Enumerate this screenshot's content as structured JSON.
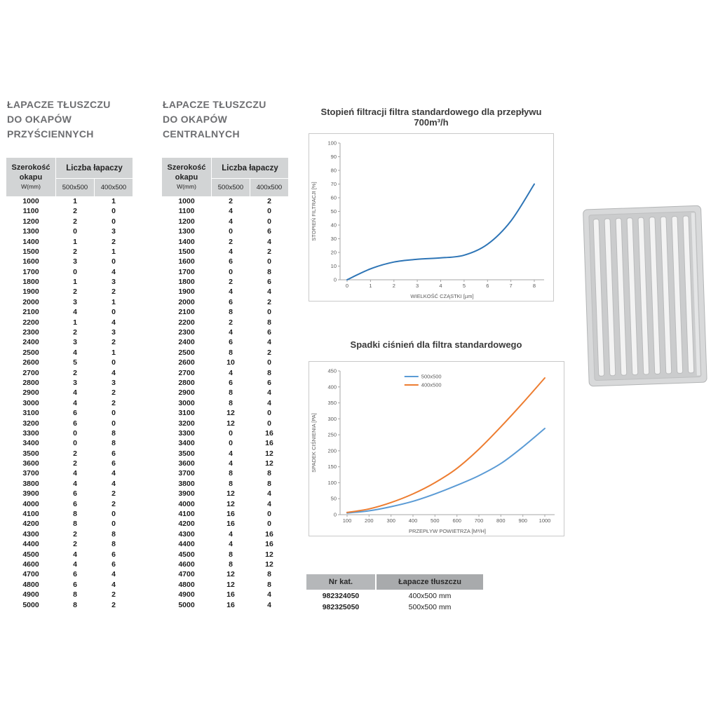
{
  "tables": [
    {
      "title_lines": [
        "ŁAPACZE TŁUSZCZU",
        "DO OKAPÓW",
        "PRZYŚCIENNYCH"
      ],
      "header": {
        "width_lines": [
          "Szerokość",
          "okapu",
          "W(mm)"
        ],
        "group": "Liczba łapaczy",
        "cols": [
          "500x500",
          "400x500"
        ]
      },
      "rows": [
        [
          1000,
          1,
          1
        ],
        [
          1100,
          2,
          0
        ],
        [
          1200,
          2,
          0
        ],
        [
          1300,
          0,
          3
        ],
        [
          1400,
          1,
          2
        ],
        [
          1500,
          2,
          1
        ],
        [
          1600,
          3,
          0
        ],
        [
          1700,
          0,
          4
        ],
        [
          1800,
          1,
          3
        ],
        [
          1900,
          2,
          2
        ],
        [
          2000,
          3,
          1
        ],
        [
          2100,
          4,
          0
        ],
        [
          2200,
          1,
          4
        ],
        [
          2300,
          2,
          3
        ],
        [
          2400,
          3,
          2
        ],
        [
          2500,
          4,
          1
        ],
        [
          2600,
          5,
          0
        ],
        [
          2700,
          2,
          4
        ],
        [
          2800,
          3,
          3
        ],
        [
          2900,
          4,
          2
        ],
        [
          3000,
          4,
          2
        ],
        [
          3100,
          6,
          0
        ],
        [
          3200,
          6,
          0
        ],
        [
          3300,
          0,
          8
        ],
        [
          3400,
          0,
          8
        ],
        [
          3500,
          2,
          6
        ],
        [
          3600,
          2,
          6
        ],
        [
          3700,
          4,
          4
        ],
        [
          3800,
          4,
          4
        ],
        [
          3900,
          6,
          2
        ],
        [
          4000,
          6,
          2
        ],
        [
          4100,
          8,
          0
        ],
        [
          4200,
          8,
          0
        ],
        [
          4300,
          2,
          8
        ],
        [
          4400,
          2,
          8
        ],
        [
          4500,
          4,
          6
        ],
        [
          4600,
          4,
          6
        ],
        [
          4700,
          6,
          4
        ],
        [
          4800,
          6,
          4
        ],
        [
          4900,
          8,
          2
        ],
        [
          5000,
          8,
          2
        ]
      ]
    },
    {
      "title_lines": [
        "ŁAPACZE TŁUSZCZU",
        "DO OKAPÓW",
        "CENTRALNYCH"
      ],
      "header": {
        "width_lines": [
          "Szerokość",
          "okapu",
          "W(mm)"
        ],
        "group": "Liczba łapaczy",
        "cols": [
          "500x500",
          "400x500"
        ]
      },
      "rows": [
        [
          1000,
          2,
          2
        ],
        [
          1100,
          4,
          0
        ],
        [
          1200,
          4,
          0
        ],
        [
          1300,
          0,
          6
        ],
        [
          1400,
          2,
          4
        ],
        [
          1500,
          4,
          2
        ],
        [
          1600,
          6,
          0
        ],
        [
          1700,
          0,
          8
        ],
        [
          1800,
          2,
          6
        ],
        [
          1900,
          4,
          4
        ],
        [
          2000,
          6,
          2
        ],
        [
          2100,
          8,
          0
        ],
        [
          2200,
          2,
          8
        ],
        [
          2300,
          4,
          6
        ],
        [
          2400,
          6,
          4
        ],
        [
          2500,
          8,
          2
        ],
        [
          2600,
          10,
          0
        ],
        [
          2700,
          4,
          8
        ],
        [
          2800,
          6,
          6
        ],
        [
          2900,
          8,
          4
        ],
        [
          3000,
          8,
          4
        ],
        [
          3100,
          12,
          0
        ],
        [
          3200,
          12,
          0
        ],
        [
          3300,
          0,
          16
        ],
        [
          3400,
          0,
          16
        ],
        [
          3500,
          4,
          12
        ],
        [
          3600,
          4,
          12
        ],
        [
          3700,
          8,
          8
        ],
        [
          3800,
          8,
          8
        ],
        [
          3900,
          12,
          4
        ],
        [
          4000,
          12,
          4
        ],
        [
          4100,
          16,
          0
        ],
        [
          4200,
          16,
          0
        ],
        [
          4300,
          4,
          16
        ],
        [
          4400,
          4,
          16
        ],
        [
          4500,
          8,
          12
        ],
        [
          4600,
          8,
          12
        ],
        [
          4700,
          12,
          8
        ],
        [
          4800,
          12,
          8
        ],
        [
          4900,
          16,
          4
        ],
        [
          5000,
          16,
          4
        ]
      ]
    }
  ],
  "chart_data": [
    {
      "type": "line",
      "title": "Stopień filtracji filtra standardowego dla przepływu 700m³/h",
      "xlabel": "WIELKOŚĆ CZĄSTKI [µm]",
      "ylabel": "STOPIEŃ FILTRACJI [%]",
      "xlim": [
        0,
        8
      ],
      "ylim": [
        0,
        100
      ],
      "xticks": [
        0,
        1,
        2,
        3,
        4,
        5,
        6,
        7,
        8
      ],
      "yticks": [
        0,
        10,
        20,
        30,
        40,
        50,
        60,
        70,
        80,
        90,
        100
      ],
      "grid": false,
      "legend": false,
      "series": [
        {
          "name": "stopien-filtracji",
          "color": "#2e75b6",
          "x": [
            0,
            1,
            2,
            3,
            4,
            5,
            6,
            7,
            8
          ],
          "y": [
            0,
            8,
            13,
            15,
            16,
            18,
            26,
            43,
            70
          ]
        }
      ]
    },
    {
      "type": "line",
      "title": "Spadki ciśnień dla filtra standardowego",
      "xlabel": "PRZEPŁYW POWIETRZA [M³/H]",
      "ylabel": "SPADEK CIŚNIENIA [PA]",
      "xlim": [
        100,
        1000
      ],
      "ylim": [
        0,
        450
      ],
      "xticks": [
        100,
        200,
        300,
        400,
        500,
        600,
        700,
        800,
        900,
        1000
      ],
      "yticks": [
        0,
        50,
        100,
        150,
        200,
        250,
        300,
        350,
        400,
        450
      ],
      "grid": false,
      "legend": true,
      "series": [
        {
          "name": "500x500",
          "color": "#5b9bd5",
          "x": [
            100,
            200,
            300,
            400,
            500,
            600,
            700,
            800,
            900,
            1000
          ],
          "y": [
            5,
            12,
            25,
            42,
            65,
            92,
            122,
            160,
            212,
            270
          ]
        },
        {
          "name": "400x500",
          "color": "#ed7d31",
          "x": [
            100,
            200,
            300,
            400,
            500,
            600,
            700,
            800,
            900,
            1000
          ],
          "y": [
            7,
            18,
            38,
            65,
            100,
            145,
            205,
            275,
            350,
            428
          ]
        }
      ]
    }
  ],
  "catalog": {
    "headers": [
      "Nr kat.",
      "Łapacze tłuszczu"
    ],
    "rows": [
      [
        "982324050",
        "400x500 mm"
      ],
      [
        "982325050",
        "500x500 mm"
      ]
    ]
  },
  "colors": {
    "series_blue": "#5b9bd5",
    "series_orange": "#ed7d31",
    "filtration_blue": "#2e75b6",
    "table_header_bg": "#d2d4d5",
    "title_gray": "#6d6e71"
  }
}
